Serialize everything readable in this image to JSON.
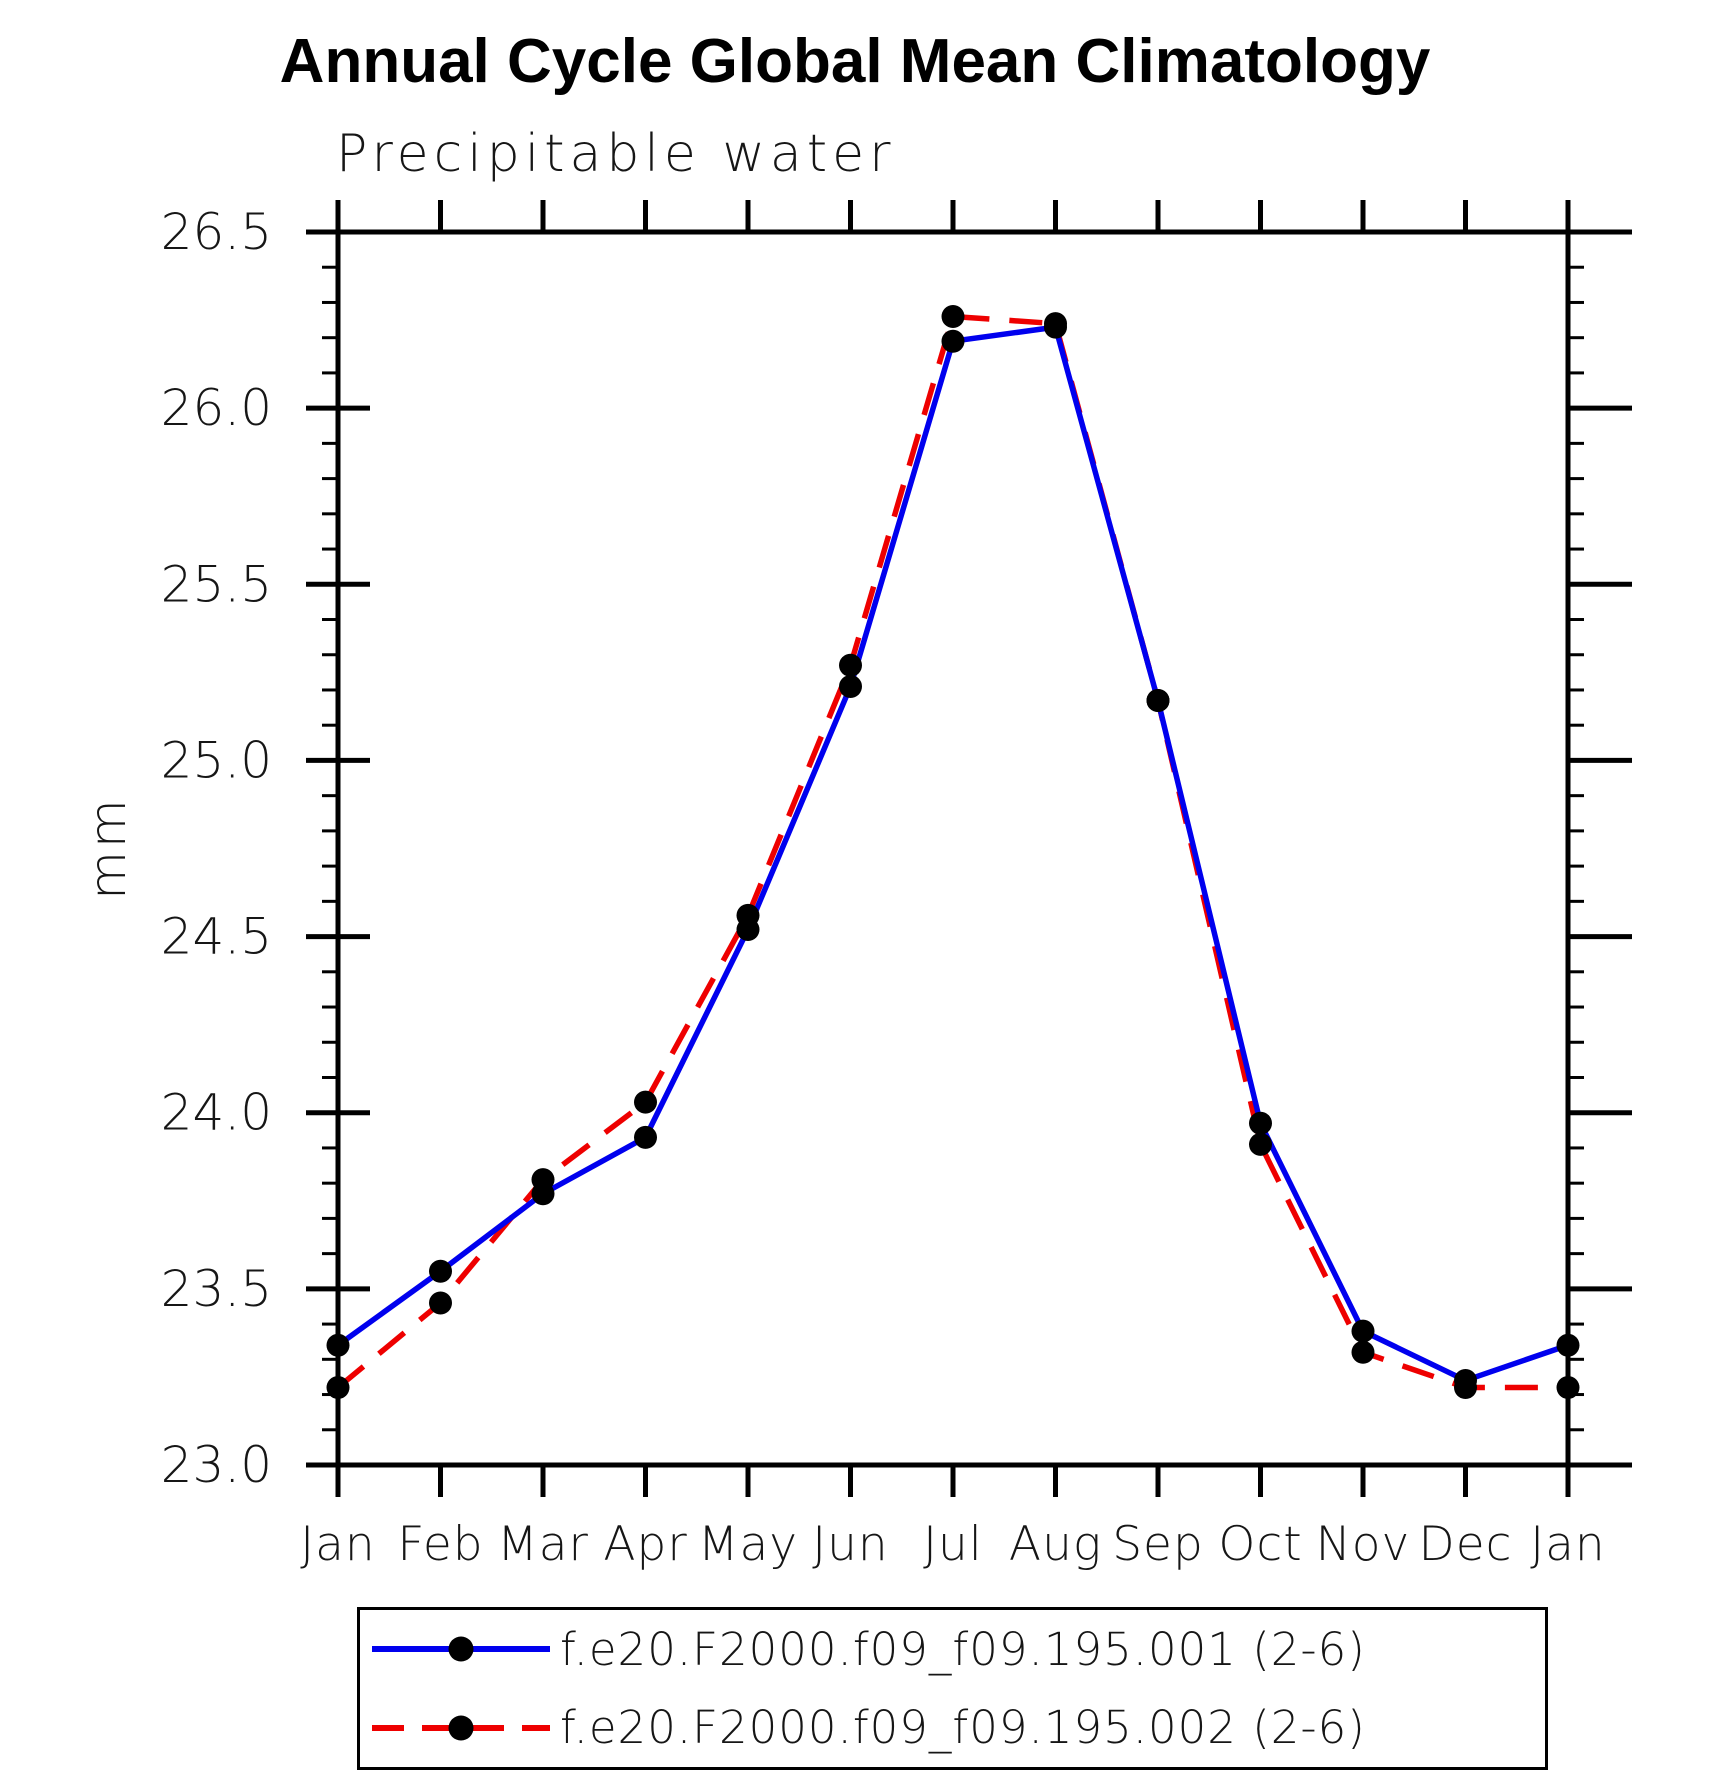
{
  "title": "Annual Cycle Global Mean Climatology",
  "subtitle": "Precipitable water",
  "ylabel": "mm",
  "colors": {
    "series1": "#0000ee",
    "series2": "#ee0000",
    "marker": "#000000",
    "axis": "#000000"
  },
  "legend": {
    "items": [
      {
        "label": "f.e20.F2000.f09_f09.195.001 (2-6)",
        "color": "#0000ee",
        "style": "solid"
      },
      {
        "label": "f.e20.F2000.f09_f09.195.002 (2-6)",
        "color": "#ee0000",
        "style": "dashed"
      }
    ]
  },
  "chart_data": {
    "type": "line",
    "title": "Annual Cycle Global Mean Climatology",
    "subtitle": "Precipitable water",
    "xlabel": "",
    "ylabel": "mm",
    "categories": [
      "Jan",
      "Feb",
      "Mar",
      "Apr",
      "May",
      "Jun",
      "Jul",
      "Aug",
      "Sep",
      "Oct",
      "Nov",
      "Dec",
      "Jan"
    ],
    "series": [
      {
        "name": "f.e20.F2000.f09_f09.195.001 (2-6)",
        "color": "#0000ee",
        "line_style": "solid",
        "marker": "circle",
        "values": [
          23.34,
          23.55,
          23.77,
          23.93,
          24.52,
          25.21,
          26.19,
          26.23,
          25.17,
          23.97,
          23.38,
          23.24,
          23.34
        ]
      },
      {
        "name": "f.e20.F2000.f09_f09.195.002 (2-6)",
        "color": "#ee0000",
        "line_style": "dashed",
        "marker": "circle",
        "values": [
          23.22,
          23.46,
          23.81,
          24.03,
          24.56,
          25.27,
          26.26,
          26.24,
          25.17,
          23.91,
          23.32,
          23.22,
          23.22
        ]
      }
    ],
    "ylim": [
      23.0,
      26.5
    ],
    "y_major_ticks": [
      23.0,
      23.5,
      24.0,
      24.5,
      25.0,
      25.5,
      26.0,
      26.5
    ],
    "y_tick_labels": [
      "23.0",
      "23.5",
      "24.0",
      "24.5",
      "25.0",
      "25.5",
      "26.0",
      "26.5"
    ],
    "y_minor_step": 0.1,
    "grid": false,
    "legend_position": "bottom"
  }
}
